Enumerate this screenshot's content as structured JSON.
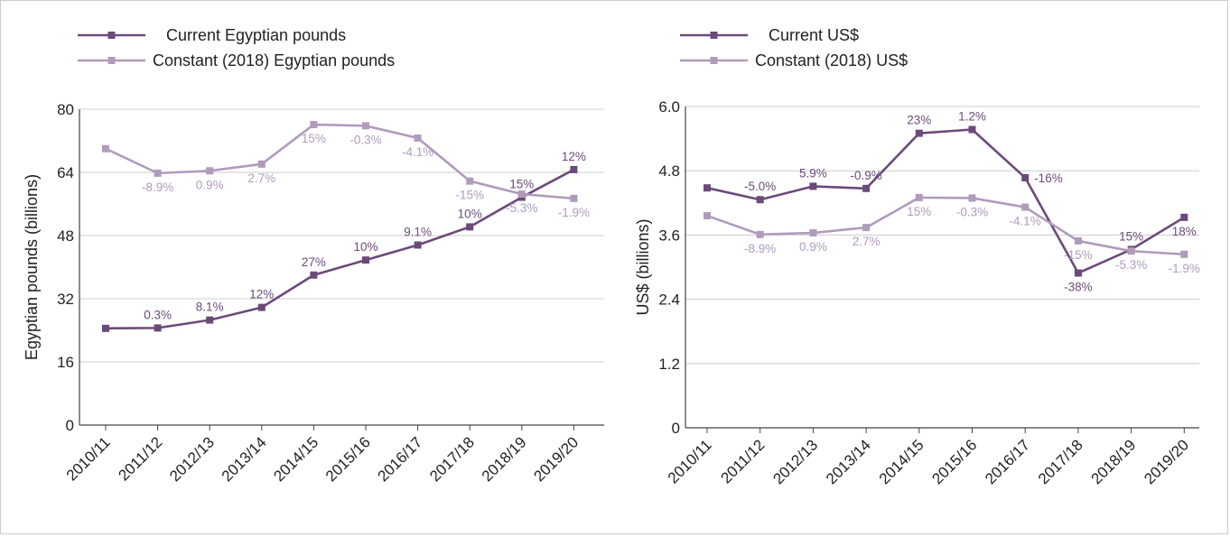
{
  "colors": {
    "current": "#6b4a7a",
    "constant": "#b09bbc",
    "grid": "#cccccc",
    "axis": "#444444"
  },
  "chart_data": [
    {
      "type": "line",
      "ylabel": "Egyptian pounds (billions)",
      "ylim": [
        0,
        80
      ],
      "yticks": [
        "0",
        "16",
        "32",
        "48",
        "64",
        "80"
      ],
      "ytick_values": [
        0,
        16,
        32,
        48,
        64,
        80
      ],
      "categories": [
        "2010/11",
        "2011/12",
        "2012/13",
        "2013/14",
        "2014/15",
        "2015/16",
        "2016/17",
        "2017/18",
        "2018/19",
        "2019/20"
      ],
      "grid": true,
      "legend": "top-left",
      "series": [
        {
          "name": "Current Egyptian pounds",
          "color_key": "current",
          "values": [
            24.5,
            24.6,
            26.6,
            29.8,
            38.0,
            41.8,
            45.6,
            50.2,
            57.7,
            64.7
          ],
          "labels": [
            "",
            "0.3%",
            "8.1%",
            "12%",
            "27%",
            "10%",
            "9.1%",
            "10%",
            "15%",
            "12%"
          ],
          "label_pos": "above"
        },
        {
          "name": "Constant (2018) Egyptian pounds",
          "color_key": "constant",
          "values": [
            70.0,
            63.8,
            64.4,
            66.1,
            76.1,
            75.8,
            72.7,
            61.8,
            58.5,
            57.4
          ],
          "labels": [
            "",
            "-8.9%",
            "0.9%",
            "2.7%",
            "15%",
            "-0.3%",
            "-4.1%",
            "-15%",
            "-5.3%",
            "-1.9%"
          ],
          "label_pos": "below"
        }
      ]
    },
    {
      "type": "line",
      "ylabel": "US$ (billions)",
      "ylim": [
        0,
        6.0
      ],
      "yticks": [
        "0",
        "1.2",
        "2.4",
        "3.6",
        "4.8",
        "6.0"
      ],
      "ytick_values": [
        0,
        1.2,
        2.4,
        3.6,
        4.8,
        6.0
      ],
      "categories": [
        "2010/11",
        "2011/12",
        "2012/13",
        "2013/14",
        "2014/15",
        "2015/16",
        "2016/17",
        "2017/18",
        "2018/19",
        "2019/20"
      ],
      "grid": true,
      "legend": "top-left",
      "series": [
        {
          "name": "Current US$",
          "color_key": "current",
          "values": [
            4.48,
            4.26,
            4.51,
            4.47,
            5.5,
            5.57,
            4.67,
            2.89,
            3.33,
            3.93
          ],
          "labels": [
            "",
            "-5.0%",
            "5.9%",
            "-0.9%",
            "23%",
            "1.2%",
            "-16%",
            "-38%",
            "15%",
            "18%"
          ],
          "label_pos": "custom",
          "label_dirs": [
            "",
            "above",
            "above",
            "above",
            "above",
            "above",
            "right",
            "below",
            "above",
            "below"
          ]
        },
        {
          "name": "Constant (2018) US$",
          "color_key": "constant",
          "values": [
            3.96,
            3.61,
            3.64,
            3.74,
            4.3,
            4.29,
            4.12,
            3.49,
            3.3,
            3.24
          ],
          "labels": [
            "",
            "-8.9%",
            "0.9%",
            "2.7%",
            "15%",
            "-0.3%",
            "-4.1%",
            "-15%",
            "-5.3%",
            "-1.9%"
          ],
          "label_pos": "below"
        }
      ]
    }
  ]
}
